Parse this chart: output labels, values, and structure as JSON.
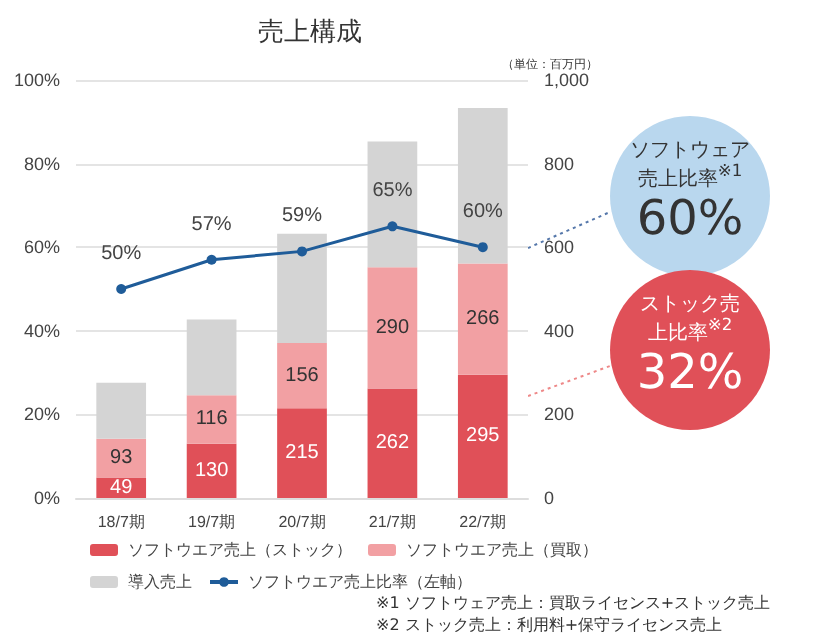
{
  "chart_data": {
    "type": "bar",
    "title": "売上構成",
    "categories": [
      "18/7期",
      "19/7期",
      "20/7期",
      "21/7期",
      "22/7期"
    ],
    "stacked": true,
    "series": [
      {
        "name": "ソフトウエア売上（ストック）",
        "axis": "y2",
        "color": "#e05058",
        "values": [
          49,
          130,
          215,
          262,
          295
        ],
        "value_labels": [
          "49",
          "130",
          "215",
          "262",
          "295"
        ]
      },
      {
        "name": "ソフトウエア売上（買取）",
        "axis": "y2",
        "color": "#f2a0a3",
        "values": [
          93,
          116,
          156,
          290,
          266
        ],
        "value_labels": [
          "93",
          "116",
          "156",
          "290",
          "266"
        ]
      },
      {
        "name": "導入売上",
        "axis": "y2",
        "color": "#d4d4d4",
        "values": [
          134,
          181,
          261,
          301,
          372
        ]
      },
      {
        "name": "ソフトウエア売上比率（左軸）",
        "type": "line",
        "color": "#1f5c99",
        "values": [
          50,
          57,
          59,
          65,
          60
        ],
        "value_labels": [
          "50%",
          "57%",
          "59%",
          "65%",
          "60%"
        ]
      }
    ],
    "ylim": [
      0,
      100
    ],
    "yticks": [
      {
        "value": 0,
        "label": "0%"
      },
      {
        "value": 20,
        "label": "20%"
      },
      {
        "value": 40,
        "label": "40%"
      },
      {
        "value": 60,
        "label": "60%"
      },
      {
        "value": 80,
        "label": "80%"
      },
      {
        "value": 100,
        "label": "100%"
      }
    ],
    "y2lim": [
      0,
      1000
    ],
    "y2ticks": [
      0,
      200,
      400,
      600,
      800,
      {
        "value": 1000,
        "label": "1,000"
      }
    ],
    "grid": "y",
    "legend": "bottom",
    "marker": "circle",
    "annotations": [
      "（単位：百万円）",
      "ソフトウェア売上比率$^{※1}$",
      "60%",
      "ストック売上比率$^{※2}$",
      "32%",
      "※1 ソフトウェア売上：買取ライセンス+ストック売上",
      "※2 ストック売上：利用料+保守ライセンス売上"
    ]
  }
}
